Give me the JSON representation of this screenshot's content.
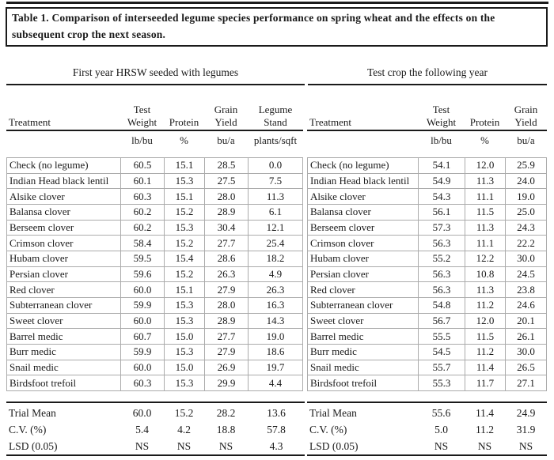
{
  "title": "Table 1. Comparison of interseeded legume species performance on spring wheat and the effects on the subsequent crop the next season.",
  "left_table": {
    "heading": "First year HRSW seeded with legumes",
    "col_headers": [
      "Treatment",
      "Test\nWeight",
      "Protein",
      "Grain\nYield",
      "Legume\nStand"
    ],
    "units": [
      "",
      "lb/bu",
      "%",
      "bu/a",
      "plants/sqft"
    ],
    "rows": [
      {
        "treatment": "Check (no legume)",
        "test_weight": "60.5",
        "protein": "15.1",
        "grain_yield": "28.5",
        "legume_stand": "0.0"
      },
      {
        "treatment": "Indian Head black lentil",
        "test_weight": "60.1",
        "protein": "15.3",
        "grain_yield": "27.5",
        "legume_stand": "7.5"
      },
      {
        "treatment": "Alsike clover",
        "test_weight": "60.3",
        "protein": "15.1",
        "grain_yield": "28.0",
        "legume_stand": "11.3"
      },
      {
        "treatment": "Balansa clover",
        "test_weight": "60.2",
        "protein": "15.2",
        "grain_yield": "28.9",
        "legume_stand": "6.1"
      },
      {
        "treatment": "Berseem clover",
        "test_weight": "60.2",
        "protein": "15.3",
        "grain_yield": "30.4",
        "legume_stand": "12.1"
      },
      {
        "treatment": "Crimson clover",
        "test_weight": "58.4",
        "protein": "15.2",
        "grain_yield": "27.7",
        "legume_stand": "25.4"
      },
      {
        "treatment": "Hubam clover",
        "test_weight": "59.5",
        "protein": "15.4",
        "grain_yield": "28.6",
        "legume_stand": "18.2"
      },
      {
        "treatment": "Persian clover",
        "test_weight": "59.6",
        "protein": "15.2",
        "grain_yield": "26.3",
        "legume_stand": "4.9"
      },
      {
        "treatment": "Red clover",
        "test_weight": "60.0",
        "protein": "15.1",
        "grain_yield": "27.9",
        "legume_stand": "26.3"
      },
      {
        "treatment": "Subterranean clover",
        "test_weight": "59.9",
        "protein": "15.3",
        "grain_yield": "28.0",
        "legume_stand": "16.3"
      },
      {
        "treatment": "Sweet clover",
        "test_weight": "60.0",
        "protein": "15.3",
        "grain_yield": "28.9",
        "legume_stand": "14.3"
      },
      {
        "treatment": "Barrel medic",
        "test_weight": "60.7",
        "protein": "15.0",
        "grain_yield": "27.7",
        "legume_stand": "19.0"
      },
      {
        "treatment": "Burr medic",
        "test_weight": "59.9",
        "protein": "15.3",
        "grain_yield": "27.9",
        "legume_stand": "18.6"
      },
      {
        "treatment": "Snail medic",
        "test_weight": "60.0",
        "protein": "15.0",
        "grain_yield": "26.9",
        "legume_stand": "19.7"
      },
      {
        "treatment": "Birdsfoot trefoil",
        "test_weight": "60.3",
        "protein": "15.3",
        "grain_yield": "29.9",
        "legume_stand": "4.4"
      }
    ],
    "summary": [
      {
        "treatment": "Trial Mean",
        "test_weight": "60.0",
        "protein": "15.2",
        "grain_yield": "28.2",
        "legume_stand": "13.6"
      },
      {
        "treatment": "C.V. (%)",
        "test_weight": "5.4",
        "protein": "4.2",
        "grain_yield": "18.8",
        "legume_stand": "57.8"
      },
      {
        "treatment": "LSD (0.05)",
        "test_weight": "NS",
        "protein": "NS",
        "grain_yield": "NS",
        "legume_stand": "4.3"
      }
    ]
  },
  "right_table": {
    "heading": "Test crop the following year",
    "col_headers": [
      "Treatment",
      "Test\nWeight",
      "Protein",
      "Grain\nYield"
    ],
    "units": [
      "",
      "lb/bu",
      "%",
      "bu/a"
    ],
    "rows": [
      {
        "treatment": "Check (no legume)",
        "test_weight": "54.1",
        "protein": "12.0",
        "grain_yield": "25.9"
      },
      {
        "treatment": "Indian Head black lentil",
        "test_weight": "54.9",
        "protein": "11.3",
        "grain_yield": "24.0"
      },
      {
        "treatment": "Alsike clover",
        "test_weight": "54.3",
        "protein": "11.1",
        "grain_yield": "19.0"
      },
      {
        "treatment": "Balansa clover",
        "test_weight": "56.1",
        "protein": "11.5",
        "grain_yield": "25.0"
      },
      {
        "treatment": "Berseem clover",
        "test_weight": "57.3",
        "protein": "11.3",
        "grain_yield": "24.3"
      },
      {
        "treatment": "Crimson clover",
        "test_weight": "56.3",
        "protein": "11.1",
        "grain_yield": "22.2"
      },
      {
        "treatment": "Hubam clover",
        "test_weight": "55.2",
        "protein": "12.2",
        "grain_yield": "30.0"
      },
      {
        "treatment": "Persian clover",
        "test_weight": "56.3",
        "protein": "10.8",
        "grain_yield": "24.5"
      },
      {
        "treatment": "Red clover",
        "test_weight": "56.3",
        "protein": "11.3",
        "grain_yield": "23.8"
      },
      {
        "treatment": "Subterranean clover",
        "test_weight": "54.8",
        "protein": "11.2",
        "grain_yield": "24.6"
      },
      {
        "treatment": "Sweet clover",
        "test_weight": "56.7",
        "protein": "12.0",
        "grain_yield": "20.1"
      },
      {
        "treatment": "Barrel medic",
        "test_weight": "55.5",
        "protein": "11.5",
        "grain_yield": "26.1"
      },
      {
        "treatment": "Burr medic",
        "test_weight": "54.5",
        "protein": "11.2",
        "grain_yield": "30.0"
      },
      {
        "treatment": "Snail medic",
        "test_weight": "55.7",
        "protein": "11.4",
        "grain_yield": "26.5"
      },
      {
        "treatment": "Birdsfoot trefoil",
        "test_weight": "55.3",
        "protein": "11.7",
        "grain_yield": "27.1"
      }
    ],
    "summary": [
      {
        "treatment": "Trial Mean",
        "test_weight": "55.6",
        "protein": "11.4",
        "grain_yield": "24.9"
      },
      {
        "treatment": "C.V. (%)",
        "test_weight": "5.0",
        "protein": "11.2",
        "grain_yield": "31.9"
      },
      {
        "treatment": "LSD (0.05)",
        "test_weight": "NS",
        "protein": "NS",
        "grain_yield": "NS"
      }
    ]
  },
  "colors": {
    "grid_line": "#ababab",
    "rule": "#1a1a1a",
    "text": "#1a1a1a",
    "background": "#ffffff"
  }
}
